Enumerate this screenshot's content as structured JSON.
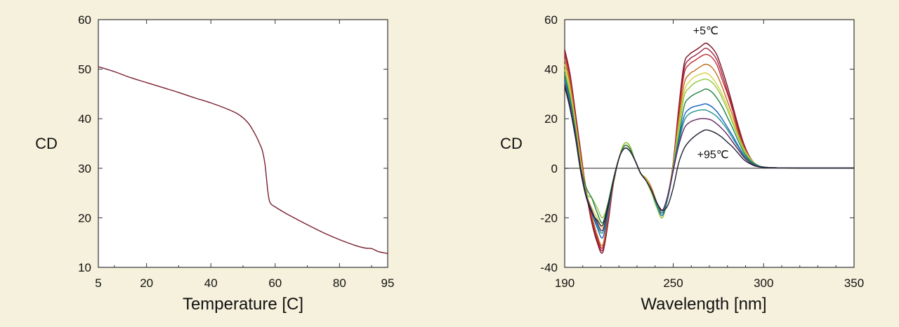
{
  "colors": {
    "background": "#f6f1dc",
    "plot_background": "#ffffff",
    "melt_curve": "#7a2030"
  },
  "chart_data": [
    {
      "id": "melting-curve",
      "type": "line",
      "xlabel": "Temperature [C]",
      "ylabel": "CD",
      "xlim": [
        5,
        95
      ],
      "ylim": [
        10,
        60
      ],
      "xticks": [
        5,
        20,
        40,
        60,
        80,
        95
      ],
      "yticks": [
        10,
        20,
        30,
        40,
        50,
        60
      ],
      "grid": false,
      "series": [
        {
          "color": "#7a2030",
          "x": [
            5,
            10,
            15,
            20,
            25,
            30,
            35,
            40,
            45,
            48,
            50,
            52,
            54,
            55,
            56,
            56.8,
            57.3,
            57.7,
            58.1,
            58.4,
            58.7,
            59,
            60,
            62,
            65,
            70,
            75,
            80,
            85,
            88,
            90,
            92,
            95
          ],
          "y": [
            50.5,
            49.5,
            48.3,
            47.3,
            46.3,
            45.3,
            44.2,
            43.2,
            42,
            41.1,
            40.2,
            38.8,
            36.6,
            35.2,
            33.6,
            31,
            28,
            25.5,
            23.7,
            23.1,
            22.8,
            22.6,
            22.2,
            21.4,
            20.3,
            18.6,
            17,
            15.6,
            14.4,
            13.9,
            13.8,
            13.2,
            12.8
          ]
        }
      ]
    },
    {
      "id": "cd-spectra",
      "type": "line",
      "xlabel": "Wavelength [nm]",
      "ylabel": "CD",
      "xlim": [
        190,
        350
      ],
      "ylim": [
        -40,
        60
      ],
      "xticks": [
        190,
        250,
        300,
        350
      ],
      "yticks": [
        -40,
        -20,
        0,
        20,
        40,
        60
      ],
      "grid": false,
      "zero_line": true,
      "annotations": [
        {
          "text": "+5℃",
          "x": 268,
          "y": 54
        },
        {
          "text": "+95℃",
          "x": 272,
          "y": 4
        }
      ],
      "common_x": [
        190,
        193,
        196,
        199,
        202,
        205,
        208,
        211,
        214,
        217,
        220,
        223,
        226,
        229,
        232,
        235,
        238,
        241,
        244,
        247,
        250,
        253,
        256,
        259,
        262,
        265,
        268,
        271,
        274,
        277,
        280,
        283,
        286,
        289,
        292,
        295,
        298,
        301,
        306,
        320,
        350
      ],
      "series": [
        {
          "color": "#7a1020",
          "y": [
            48,
            38,
            22,
            6,
            -10,
            -22,
            -30,
            -34,
            -22,
            -6,
            4,
            10,
            9,
            3,
            -2,
            -4,
            -8,
            -14,
            -18,
            -12,
            2,
            24,
            42,
            46,
            47.5,
            49,
            50.5,
            49,
            46,
            40,
            33,
            25,
            17,
            10,
            5,
            2,
            0.8,
            0.4,
            0.2,
            0.1,
            0.1
          ]
        },
        {
          "color": "#9b2040",
          "y": [
            47,
            37,
            21,
            5,
            -10,
            -21,
            -29,
            -33,
            -21,
            -6,
            4,
            9,
            8,
            3,
            -2,
            -4,
            -8,
            -14,
            -18,
            -11,
            2,
            23,
            40,
            44,
            45.5,
            47,
            48.5,
            47,
            44,
            38,
            31,
            24,
            16,
            9.5,
            5,
            2,
            0.8,
            0.4,
            0.2,
            0.1,
            0.1
          ]
        },
        {
          "color": "#c02830",
          "y": [
            46,
            36,
            20,
            5,
            -9,
            -20,
            -28,
            -32,
            -20,
            -6,
            4,
            9,
            8,
            3,
            -2,
            -4,
            -8,
            -14,
            -18,
            -11,
            1,
            21,
            38,
            42,
            43.5,
            45,
            46,
            45,
            42,
            36,
            30,
            23,
            15,
            9,
            4.5,
            2,
            0.8,
            0.4,
            0.2,
            0.1,
            0.1
          ]
        },
        {
          "color": "#c07020",
          "y": [
            44,
            34,
            19,
            4,
            -9,
            -19,
            -27,
            -31,
            -19,
            -6,
            4,
            9,
            8,
            3,
            -2,
            -4,
            -8,
            -14,
            -18,
            -11,
            1,
            19,
            34,
            38,
            39.5,
            41,
            42,
            41,
            38,
            33,
            27,
            21,
            14,
            8.5,
            4.5,
            2,
            0.8,
            0.4,
            0.2,
            0.1,
            0.1
          ]
        },
        {
          "color": "#d8d040",
          "y": [
            42,
            32,
            18,
            2,
            -10,
            -16,
            -20,
            -24,
            -16,
            -5,
            4,
            10,
            9,
            3,
            -2,
            -4,
            -9,
            -15,
            -20,
            -12,
            1,
            17,
            31,
            35,
            37,
            38,
            38.5,
            37,
            34,
            30,
            25,
            19,
            13,
            8,
            4.5,
            2,
            0.8,
            0.4,
            0.2,
            0.1,
            0.1
          ]
        },
        {
          "color": "#90c840",
          "y": [
            40,
            30,
            16,
            0,
            -10,
            -12,
            -16,
            -20,
            -14,
            -5,
            4,
            10,
            9,
            3,
            -2,
            -5,
            -10,
            -16,
            -20,
            -12,
            0,
            15,
            29,
            32.5,
            34.5,
            35.5,
            36,
            35,
            32.5,
            28.5,
            23.5,
            18,
            12.5,
            7.5,
            4,
            2,
            0.8,
            0.4,
            0.2,
            0.1,
            0.1
          ]
        },
        {
          "color": "#208040",
          "y": [
            38,
            28,
            15,
            0,
            -8,
            -12,
            -18,
            -22,
            -14,
            -4,
            4,
            9,
            8,
            3,
            -2,
            -5,
            -9,
            -15,
            -18,
            -12,
            0,
            12,
            25,
            28.5,
            30,
            31,
            32,
            31,
            28.5,
            25,
            20.5,
            16,
            11,
            6.5,
            3.5,
            1.8,
            0.8,
            0.4,
            0.2,
            0.1,
            0.1
          ]
        },
        {
          "color": "#1060c0",
          "y": [
            36,
            27,
            14,
            -1,
            -11,
            -18,
            -24,
            -28,
            -18,
            -5,
            4,
            8,
            7,
            3,
            -2,
            -5,
            -9,
            -15,
            -19,
            -12,
            -1,
            11,
            21,
            24,
            25,
            25.5,
            26,
            25,
            23,
            20,
            16.5,
            13,
            9,
            5.5,
            3,
            1.5,
            0.7,
            0.4,
            0.2,
            0.1,
            0.1
          ]
        },
        {
          "color": "#209090",
          "y": [
            35,
            26,
            14,
            -1,
            -11,
            -17,
            -23,
            -26,
            -17,
            -5,
            4,
            8,
            7,
            3,
            -2,
            -5,
            -9,
            -15,
            -18,
            -12,
            -1,
            10,
            19,
            22,
            23,
            23.5,
            23.5,
            22.5,
            21,
            18.5,
            15.5,
            12,
            8.5,
            5,
            2.8,
            1.4,
            0.6,
            0.3,
            0.2,
            0.1,
            0.1
          ]
        },
        {
          "color": "#602060",
          "y": [
            34,
            25,
            13,
            -1,
            -11,
            -17,
            -22,
            -25,
            -16,
            -5,
            4,
            8,
            7,
            3,
            -2,
            -5,
            -9,
            -14,
            -17,
            -11,
            -1,
            9,
            16,
            18.5,
            19.5,
            20,
            20,
            19.5,
            18,
            16,
            13.5,
            10.5,
            7.5,
            4.5,
            2.5,
            1.2,
            0.6,
            0.3,
            0.2,
            0.1,
            0.1
          ]
        },
        {
          "color": "#202030",
          "y": [
            33,
            24,
            12,
            -2,
            -12,
            -18,
            -21,
            -23,
            -15,
            -5,
            4,
            8,
            7,
            3,
            -2,
            -5,
            -9,
            -14,
            -17,
            -15,
            -8,
            2,
            8,
            11,
            13,
            14.5,
            15.5,
            15,
            14,
            12.5,
            10.5,
            8.5,
            6,
            3.5,
            2,
            1,
            0.5,
            0.3,
            0.2,
            0.1,
            0.1
          ]
        }
      ]
    }
  ]
}
